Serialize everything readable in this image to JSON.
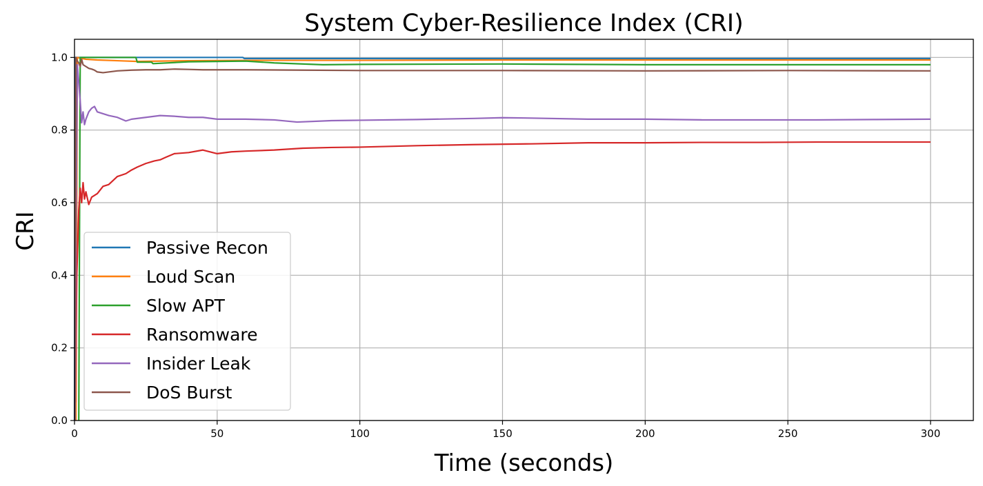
{
  "chart_data": {
    "type": "line",
    "title": "System Cyber-Resilience Index (CRI)",
    "xlabel": "Time (seconds)",
    "ylabel": "CRI",
    "xlim": [
      0,
      315
    ],
    "ylim": [
      0.0,
      1.05
    ],
    "xticks": [
      0,
      50,
      100,
      150,
      200,
      250,
      300
    ],
    "yticks": [
      0.0,
      0.2,
      0.4,
      0.6,
      0.8,
      1.0
    ],
    "xtick_labels": [
      "0",
      "50",
      "100",
      "150",
      "200",
      "250",
      "300"
    ],
    "ytick_labels": [
      "0.0",
      "0.2",
      "0.4",
      "0.6",
      "0.8",
      "1.0"
    ],
    "grid": true,
    "legend_position": "lower-left",
    "series": [
      {
        "name": "Passive Recon",
        "color": "#1f77b4",
        "x": [
          0,
          0.3,
          1,
          10,
          30,
          59,
          59.5,
          100,
          150,
          200,
          250,
          300
        ],
        "y": [
          0.0,
          1.0,
          1.0,
          1.0,
          1.0,
          1.0,
          0.997,
          0.997,
          0.997,
          0.997,
          0.997,
          0.997
        ]
      },
      {
        "name": "Loud Scan",
        "color": "#ff7f0e",
        "x": [
          0.5,
          1,
          2,
          4,
          8,
          15,
          22,
          30,
          40,
          60,
          80,
          100,
          150,
          200,
          250,
          300
        ],
        "y": [
          0.0,
          1.0,
          0.998,
          0.995,
          0.993,
          0.991,
          0.989,
          0.99,
          0.991,
          0.992,
          0.992,
          0.992,
          0.993,
          0.993,
          0.993,
          0.993
        ]
      },
      {
        "name": "Slow APT",
        "color": "#2ca02c",
        "x": [
          1.5,
          2,
          5,
          21.5,
          22,
          27,
          27.5,
          40,
          60,
          70,
          87,
          100,
          150,
          200,
          250,
          300
        ],
        "y": [
          0.0,
          1.0,
          1.0,
          1.0,
          0.987,
          0.987,
          0.983,
          0.988,
          0.99,
          0.985,
          0.98,
          0.981,
          0.982,
          0.98,
          0.98,
          0.98
        ]
      },
      {
        "name": "Ransomware",
        "color": "#d62728",
        "x": [
          0.3,
          0.8,
          1.5,
          2,
          2.5,
          3,
          3.5,
          4,
          5,
          6,
          8,
          10,
          12,
          15,
          18,
          20,
          22,
          25,
          28,
          30,
          32,
          35,
          40,
          45,
          50,
          55,
          60,
          70,
          80,
          90,
          100,
          120,
          140,
          160,
          180,
          200,
          220,
          240,
          260,
          280,
          300
        ],
        "y": [
          0.05,
          0.4,
          0.58,
          0.64,
          0.6,
          0.655,
          0.61,
          0.63,
          0.595,
          0.615,
          0.625,
          0.645,
          0.65,
          0.672,
          0.68,
          0.69,
          0.698,
          0.708,
          0.715,
          0.718,
          0.725,
          0.735,
          0.738,
          0.745,
          0.735,
          0.74,
          0.742,
          0.745,
          0.75,
          0.752,
          0.753,
          0.757,
          0.76,
          0.762,
          0.765,
          0.765,
          0.766,
          0.766,
          0.767,
          0.767,
          0.767
        ]
      },
      {
        "name": "Insider Leak",
        "color": "#9467bd",
        "x": [
          0.2,
          0.5,
          1,
          1.5,
          2,
          2.5,
          3,
          3.5,
          4,
          5,
          6,
          7,
          8,
          10,
          12,
          15,
          18,
          20,
          25,
          30,
          35,
          40,
          45,
          50,
          60,
          70,
          78,
          90,
          100,
          120,
          140,
          150,
          160,
          180,
          200,
          220,
          240,
          260,
          280,
          300
        ],
        "y": [
          0.0,
          0.5,
          0.98,
          0.93,
          0.88,
          0.82,
          0.85,
          0.815,
          0.83,
          0.85,
          0.86,
          0.865,
          0.85,
          0.845,
          0.84,
          0.835,
          0.825,
          0.83,
          0.835,
          0.84,
          0.838,
          0.835,
          0.835,
          0.83,
          0.83,
          0.828,
          0.822,
          0.826,
          0.827,
          0.829,
          0.832,
          0.834,
          0.833,
          0.83,
          0.83,
          0.828,
          0.828,
          0.828,
          0.829,
          0.83
        ]
      },
      {
        "name": "DoS Burst",
        "color": "#8c564b",
        "x": [
          0.1,
          0.5,
          1,
          1.5,
          2,
          2.5,
          3,
          4,
          5,
          6,
          7,
          8,
          10,
          15,
          20,
          25,
          30,
          35,
          40,
          45,
          50,
          60,
          80,
          100,
          150,
          200,
          250,
          300
        ],
        "y": [
          0.0,
          1.0,
          0.99,
          0.985,
          0.975,
          0.995,
          0.98,
          0.975,
          0.97,
          0.968,
          0.965,
          0.96,
          0.958,
          0.963,
          0.965,
          0.966,
          0.966,
          0.968,
          0.967,
          0.966,
          0.966,
          0.966,
          0.965,
          0.964,
          0.964,
          0.963,
          0.964,
          0.963
        ]
      }
    ]
  }
}
